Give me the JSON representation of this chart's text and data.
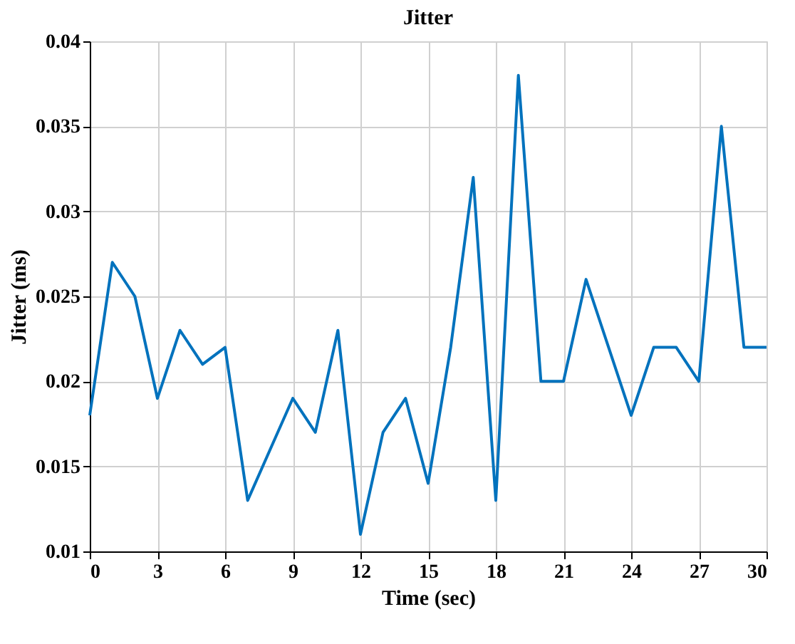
{
  "chart_data": {
    "type": "line",
    "title": "Jitter",
    "xlabel": "Time (sec)",
    "ylabel": "Jitter (ms)",
    "x": [
      0,
      1,
      2,
      3,
      4,
      5,
      6,
      7,
      8,
      9,
      10,
      11,
      12,
      13,
      14,
      15,
      16,
      17,
      18,
      19,
      20,
      21,
      22,
      23,
      24,
      25,
      26,
      27,
      28,
      29,
      30
    ],
    "series": [
      {
        "color": "#0072bd",
        "values": [
          0.018,
          0.027,
          0.025,
          0.019,
          0.023,
          0.021,
          0.022,
          0.013,
          0.016,
          0.019,
          0.017,
          0.023,
          0.011,
          0.017,
          0.019,
          0.014,
          0.022,
          0.032,
          0.013,
          0.038,
          0.02,
          0.02,
          0.026,
          0.022,
          0.018,
          0.022,
          0.022,
          0.02,
          0.035,
          0.022,
          0.022
        ]
      }
    ],
    "xlim": [
      0,
      30
    ],
    "xticks": [
      0,
      3,
      6,
      9,
      12,
      15,
      18,
      21,
      24,
      27,
      30
    ],
    "ylim": [
      0.01,
      0.04
    ],
    "yticks": [
      0.01,
      0.015,
      0.02,
      0.025,
      0.03,
      0.035,
      0.04
    ],
    "grid": true,
    "marker": "none",
    "line_style": "solid"
  }
}
